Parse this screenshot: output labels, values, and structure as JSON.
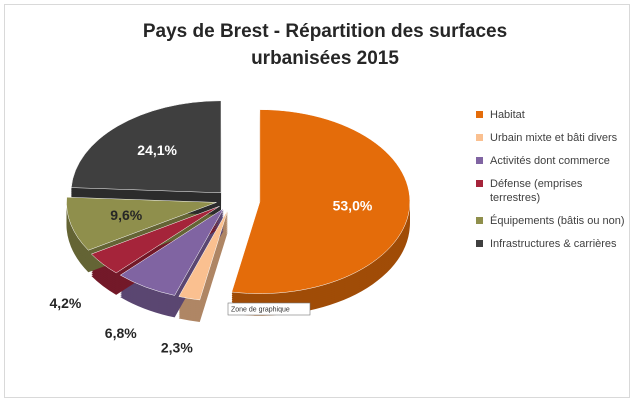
{
  "chart_data": {
    "type": "pie",
    "title": "Pays de Brest - Répartition des surfaces urbanisées 2015",
    "categories": [
      "Habitat",
      "Urbain mixte et bâti divers",
      "Activités dont commerce",
      "Défense (emprises terrestres)",
      "Équipements (bâtis ou non)",
      "Infrastructures & carrières"
    ],
    "values": [
      53.0,
      2.3,
      6.8,
      4.2,
      9.6,
      24.1
    ],
    "value_labels": [
      "53,0%",
      "2,3%",
      "6,8%",
      "4,2%",
      "9,6%",
      "24,1%"
    ],
    "colors": [
      "#e46c0a",
      "#fac090",
      "#8064a2",
      "#a5243a",
      "#8f8f4c",
      "#3f3f3f"
    ],
    "legend": "right",
    "tooltip": "Zone de graphique"
  }
}
